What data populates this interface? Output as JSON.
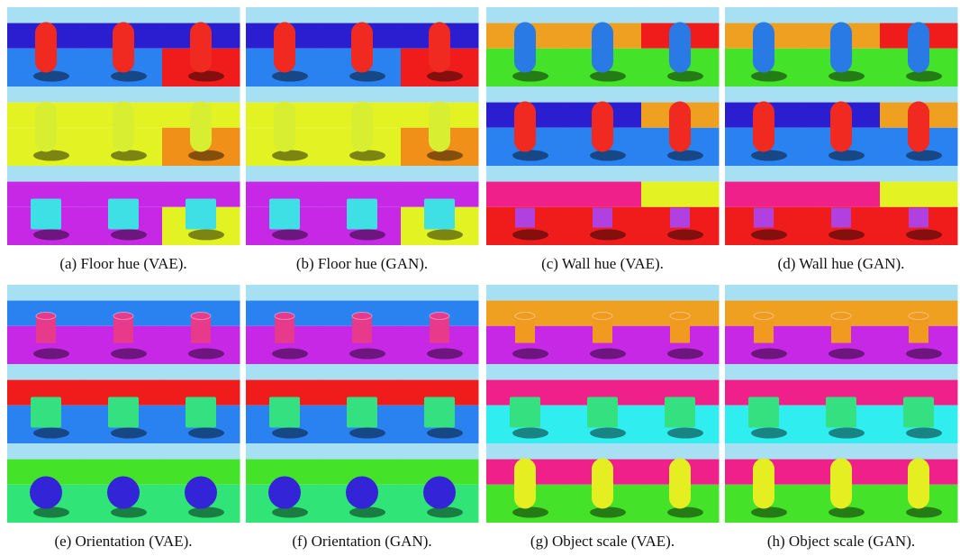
{
  "panels": [
    {
      "caption": "(a) Floor hue (VAE)."
    },
    {
      "caption": "(b) Floor hue (GAN)."
    },
    {
      "caption": "(c) Wall hue (VAE)."
    },
    {
      "caption": "(d) Wall hue (GAN)."
    },
    {
      "caption": "(e) Orientation (VAE)."
    },
    {
      "caption": "(f) Orientation (GAN)."
    },
    {
      "caption": "(g) Object scale (VAE)."
    },
    {
      "caption": "(h) Object scale (GAN)."
    }
  ]
}
